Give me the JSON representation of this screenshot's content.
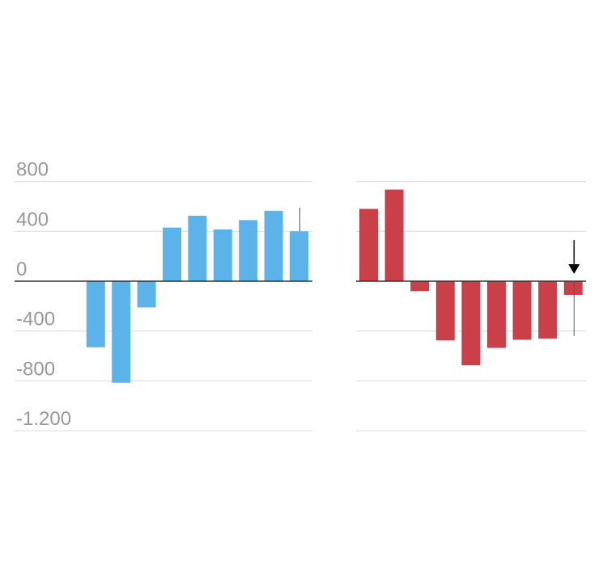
{
  "colors": {
    "left_bars": "#5bb3ea",
    "right_bars": "#cb3f49",
    "grid": "#d9d9d9",
    "zero_line": "#333333",
    "tick_text": "#999999",
    "marker": "#000000"
  },
  "chart_data": [
    {
      "type": "bar",
      "name": "left-panel",
      "ylim": [
        -1200,
        800
      ],
      "y_ticks": [
        800,
        400,
        0,
        -400,
        -800,
        -1200
      ],
      "y_tick_labels": [
        "800",
        "400",
        "0",
        "-400",
        "-800",
        "-1.200"
      ],
      "values": [
        null,
        null,
        -530,
        -815,
        -210,
        430,
        525,
        415,
        490,
        565,
        400
      ],
      "error_bar_index": 10,
      "error_bar_range": [
        400,
        590
      ],
      "grid": true
    },
    {
      "type": "bar",
      "name": "right-panel",
      "ylim": [
        -1200,
        800
      ],
      "y_ticks": [
        800,
        400,
        0,
        -400,
        -800,
        -1200
      ],
      "values": [
        580,
        735,
        -80,
        -475,
        -675,
        -535,
        -470,
        -460,
        -110
      ],
      "error_bar_index": 8,
      "error_bar_range": [
        -440,
        0
      ],
      "marker": "down-arrow",
      "marker_index": 8,
      "grid": true
    }
  ]
}
